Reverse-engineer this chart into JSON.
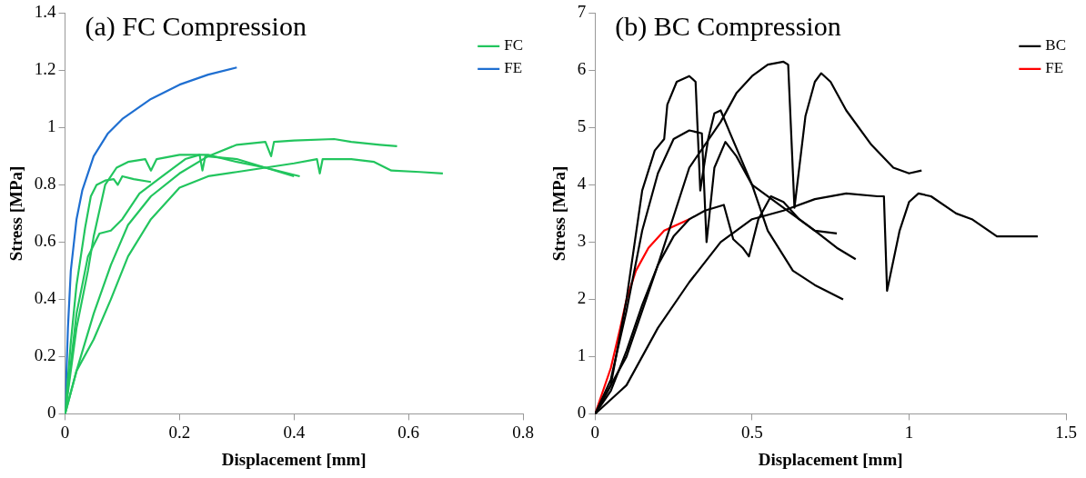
{
  "chart_data": [
    {
      "type": "line",
      "title": "(a) FC Compression",
      "xlabel": "Displacement [mm]",
      "ylabel": "Stress [MPa]",
      "xlim": [
        0,
        0.8
      ],
      "xticks": [
        0,
        0.2,
        0.4,
        0.6,
        0.8
      ],
      "ylim": [
        0,
        1.4
      ],
      "yticks": [
        0,
        0.2,
        0.4,
        0.6,
        0.8,
        1,
        1.2,
        1.4
      ],
      "grid": false,
      "legend": "top right",
      "marker": "none",
      "line_style": "solid",
      "series": [
        {
          "name": "FC",
          "color": "#22c55e",
          "x": [
            0,
            0.01,
            0.02,
            0.035,
            0.045,
            0.055,
            0.07,
            0.085,
            0.092,
            0.1,
            0.12,
            0.15
          ],
          "values": [
            0,
            0.25,
            0.45,
            0.65,
            0.76,
            0.8,
            0.815,
            0.82,
            0.8,
            0.83,
            0.82,
            0.81
          ]
        },
        {
          "color": "#22c55e",
          "x": [
            0,
            0.02,
            0.04,
            0.05,
            0.07,
            0.09,
            0.11,
            0.14,
            0.15,
            0.16,
            0.2,
            0.25,
            0.3,
            0.35,
            0.41
          ],
          "values": [
            0,
            0.3,
            0.5,
            0.62,
            0.8,
            0.86,
            0.88,
            0.89,
            0.85,
            0.89,
            0.905,
            0.905,
            0.88,
            0.86,
            0.83
          ]
        },
        {
          "color": "#22c55e",
          "x": [
            0,
            0.02,
            0.04,
            0.06,
            0.08,
            0.1,
            0.13,
            0.17,
            0.21,
            0.235,
            0.24,
            0.245,
            0.3,
            0.35,
            0.4
          ],
          "values": [
            0,
            0.35,
            0.55,
            0.63,
            0.64,
            0.68,
            0.77,
            0.83,
            0.89,
            0.905,
            0.85,
            0.9,
            0.89,
            0.86,
            0.83
          ]
        },
        {
          "color": "#22c55e",
          "x": [
            0,
            0.02,
            0.05,
            0.08,
            0.11,
            0.15,
            0.2,
            0.25,
            0.3,
            0.35,
            0.36,
            0.365,
            0.4,
            0.47,
            0.5,
            0.55,
            0.58
          ],
          "values": [
            0,
            0.15,
            0.35,
            0.52,
            0.66,
            0.76,
            0.84,
            0.9,
            0.94,
            0.95,
            0.9,
            0.95,
            0.955,
            0.96,
            0.95,
            0.94,
            0.935
          ]
        },
        {
          "color": "#22c55e",
          "x": [
            0,
            0.02,
            0.05,
            0.08,
            0.11,
            0.15,
            0.2,
            0.25,
            0.3,
            0.35,
            0.4,
            0.44,
            0.445,
            0.45,
            0.5,
            0.54,
            0.57,
            0.62,
            0.66
          ],
          "values": [
            0,
            0.15,
            0.26,
            0.4,
            0.55,
            0.68,
            0.79,
            0.83,
            0.845,
            0.86,
            0.875,
            0.89,
            0.84,
            0.89,
            0.89,
            0.88,
            0.85,
            0.845,
            0.84
          ]
        },
        {
          "name": "FE",
          "color": "#1f6fd1",
          "x": [
            0,
            0.005,
            0.01,
            0.02,
            0.03,
            0.05,
            0.075,
            0.1,
            0.15,
            0.2,
            0.25,
            0.3
          ],
          "values": [
            0,
            0.3,
            0.5,
            0.68,
            0.78,
            0.9,
            0.98,
            1.03,
            1.1,
            1.15,
            1.185,
            1.21
          ]
        }
      ]
    },
    {
      "type": "line",
      "title": "(b) BC Compression",
      "xlabel": "Displacement [mm]",
      "ylabel": "Stress [MPa]",
      "xlim": [
        0,
        1.5
      ],
      "xticks": [
        0,
        0.5,
        1,
        1.5
      ],
      "ylim": [
        0,
        7
      ],
      "yticks": [
        0,
        1,
        2,
        3,
        4,
        5,
        6,
        7
      ],
      "grid": false,
      "legend": "top right",
      "marker": "none",
      "line_style": "solid",
      "series": [
        {
          "name": "BC",
          "color": "#000000",
          "x": [
            0,
            0.05,
            0.1,
            0.15,
            0.19,
            0.22,
            0.23,
            0.26,
            0.3,
            0.32,
            0.335,
            0.36,
            0.38,
            0.4,
            0.43,
            0.5,
            0.55,
            0.63,
            0.7,
            0.79
          ],
          "values": [
            0,
            0.5,
            2,
            3.9,
            4.6,
            4.8,
            5.4,
            5.8,
            5.9,
            5.8,
            3.9,
            4.8,
            5.25,
            5.3,
            4.9,
            4,
            3.2,
            2.5,
            2.25,
            2
          ]
        },
        {
          "color": "#000000",
          "x": [
            0,
            0.05,
            0.1,
            0.15,
            0.2,
            0.25,
            0.3,
            0.34,
            0.355,
            0.38,
            0.415,
            0.45,
            0.5,
            0.6,
            0.7,
            0.77,
            0.83
          ],
          "values": [
            0,
            0.6,
            1.8,
            3.2,
            4.2,
            4.8,
            4.95,
            4.9,
            3,
            4.3,
            4.75,
            4.5,
            4,
            3.6,
            3.2,
            2.9,
            2.7
          ]
        },
        {
          "color": "#000000",
          "x": [
            0,
            0.1,
            0.2,
            0.3,
            0.4,
            0.45,
            0.5,
            0.55,
            0.6,
            0.615,
            0.635,
            0.67,
            0.7,
            0.72,
            0.75,
            0.8,
            0.88,
            0.95,
            1,
            1.04
          ],
          "values": [
            0,
            1,
            2.6,
            4.3,
            5.1,
            5.6,
            5.9,
            6.1,
            6.15,
            6.1,
            3.6,
            5.2,
            5.8,
            5.95,
            5.8,
            5.3,
            4.7,
            4.3,
            4.2,
            4.25
          ]
        },
        {
          "color": "#000000",
          "x": [
            0,
            0.05,
            0.1,
            0.15,
            0.2,
            0.25,
            0.3,
            0.35,
            0.41,
            0.44,
            0.47,
            0.49,
            0.52,
            0.56,
            0.6,
            0.65,
            0.7,
            0.77
          ],
          "values": [
            0,
            0.4,
            1.1,
            1.9,
            2.6,
            3.1,
            3.4,
            3.55,
            3.65,
            3.05,
            2.9,
            2.75,
            3.4,
            3.8,
            3.7,
            3.4,
            3.2,
            3.15
          ]
        },
        {
          "color": "#000000",
          "x": [
            0,
            0.08,
            0.1,
            0.2,
            0.3,
            0.4,
            0.5,
            0.6,
            0.7,
            0.8,
            0.9,
            0.92,
            0.93,
            0.97,
            1,
            1.03,
            1.07,
            1.15,
            1.2,
            1.28,
            1.38,
            1.41
          ],
          "values": [
            0,
            0.4,
            0.5,
            1.5,
            2.3,
            3,
            3.4,
            3.55,
            3.75,
            3.85,
            3.8,
            3.8,
            2.15,
            3.2,
            3.7,
            3.85,
            3.8,
            3.5,
            3.4,
            3.1,
            3.1,
            3.1
          ]
        },
        {
          "name": "FE",
          "color": "#ff0000",
          "x": [
            0,
            0.05,
            0.08,
            0.1,
            0.13,
            0.17,
            0.22,
            0.3
          ],
          "values": [
            0,
            0.8,
            1.5,
            2,
            2.5,
            2.9,
            3.2,
            3.4
          ]
        }
      ]
    }
  ]
}
